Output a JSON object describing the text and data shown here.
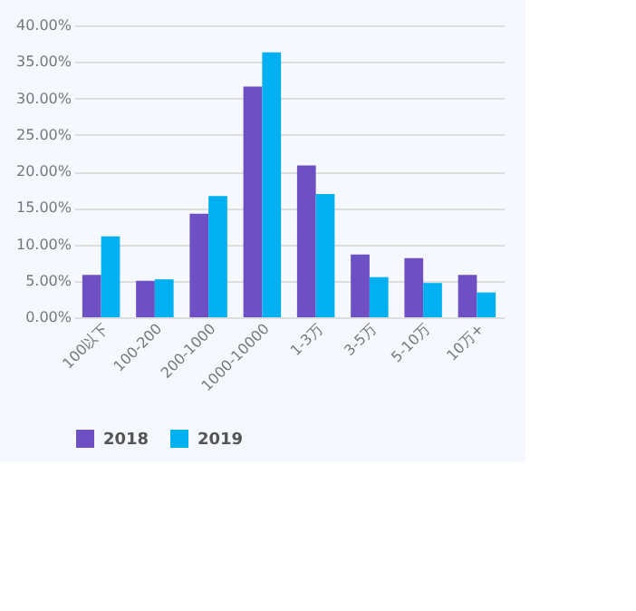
{
  "chart_data": {
    "type": "bar",
    "categories": [
      "100以下",
      "100-200",
      "200-1000",
      "1000-10000",
      "1-3万",
      "3-5万",
      "5-10万",
      "10万+"
    ],
    "series": [
      {
        "name": "2018",
        "color": "#6f4fc4",
        "values": [
          5.8,
          5.0,
          14.2,
          31.6,
          20.8,
          8.6,
          8.1,
          5.8
        ]
      },
      {
        "name": "2019",
        "color": "#00b0f0",
        "values": [
          11.1,
          5.2,
          16.6,
          36.3,
          16.9,
          5.5,
          4.7,
          3.4
        ]
      }
    ],
    "ylim": [
      0,
      40
    ],
    "yticks": [
      {
        "value": 0,
        "label": "0.00%"
      },
      {
        "value": 5,
        "label": "5.00%"
      },
      {
        "value": 10,
        "label": "10.00%"
      },
      {
        "value": 15,
        "label": "15.00%"
      },
      {
        "value": 20,
        "label": "20.00%"
      },
      {
        "value": 25,
        "label": "25.00%"
      },
      {
        "value": 30,
        "label": "30.00%"
      },
      {
        "value": 35,
        "label": "35.00%"
      },
      {
        "value": 40,
        "label": "40.00%"
      }
    ],
    "grid": "y",
    "legend": "bottom"
  }
}
